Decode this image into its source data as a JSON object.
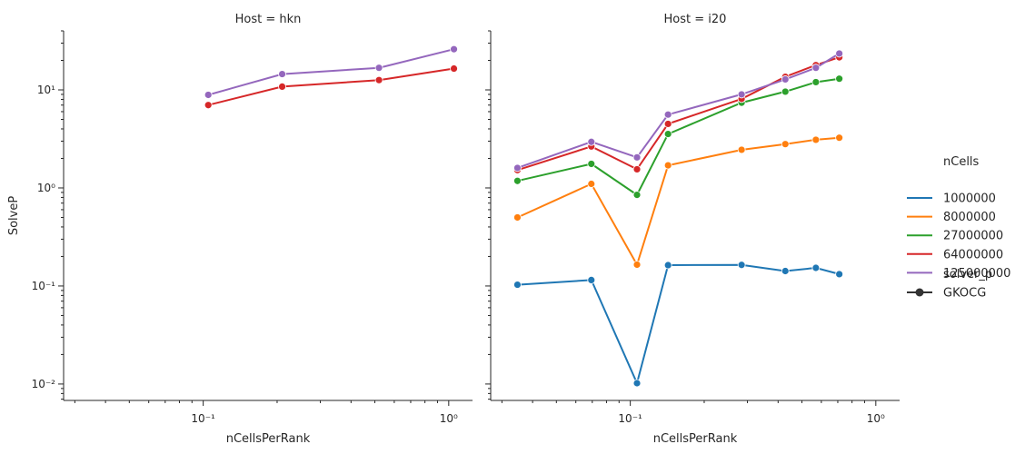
{
  "chart_data": {
    "type": "line",
    "panels": [
      {
        "title": "Host = hkn",
        "xlabel": "nCellsPerRank",
        "ylabel": "SolveP",
        "series": [
          {
            "name": "125000000",
            "x": [
              0.1048576,
              0.2097152,
              0.52,
              1.05
            ],
            "y": [
              8.9,
              14.5,
              16.8,
              26.0
            ]
          },
          {
            "name": "64000000",
            "x": [
              0.1048576,
              0.2097152,
              0.52,
              1.05
            ],
            "y": [
              7.0,
              10.8,
              12.6,
              16.5
            ]
          }
        ]
      },
      {
        "title": "Host = i20",
        "xlabel": "nCellsPerRank",
        "ylabel": "",
        "series": [
          {
            "name": "1000000",
            "x": [
              0.0347,
              0.0694,
              0.1065,
              0.1425,
              0.284,
              0.428,
              0.57,
              0.71
            ],
            "y": [
              0.103,
              0.115,
              0.0102,
              0.163,
              0.164,
              0.142,
              0.153,
              0.132
            ]
          },
          {
            "name": "8000000",
            "x": [
              0.0347,
              0.0694,
              0.1065,
              0.1425,
              0.284,
              0.428,
              0.57,
              0.71
            ],
            "y": [
              0.5,
              1.1,
              0.165,
              1.7,
              2.45,
              2.8,
              3.1,
              3.25
            ]
          },
          {
            "name": "27000000",
            "x": [
              0.0347,
              0.0694,
              0.1065,
              0.1425,
              0.284,
              0.428,
              0.57,
              0.71
            ],
            "y": [
              1.18,
              1.76,
              0.85,
              3.55,
              7.4,
              9.6,
              12.0,
              13.0
            ]
          },
          {
            "name": "64000000",
            "x": [
              0.0347,
              0.0694,
              0.1065,
              0.1425,
              0.284,
              0.428,
              0.57,
              0.71
            ],
            "y": [
              1.52,
              2.65,
              1.55,
              4.5,
              8.1,
              13.6,
              17.9,
              21.5
            ]
          },
          {
            "name": "125000000",
            "x": [
              0.0347,
              0.0694,
              0.1065,
              0.1425,
              0.284,
              0.428,
              0.57,
              0.71
            ],
            "y": [
              1.6,
              2.95,
              2.05,
              5.6,
              9.0,
              12.8,
              16.8,
              23.5
            ]
          }
        ]
      }
    ],
    "xscale": "log",
    "yscale": "log",
    "xlim": [
      0.027,
      1.25
    ],
    "ylim": [
      0.0068,
      40
    ],
    "x_ticks": [
      {
        "value": 0.1,
        "label": "10⁻¹"
      },
      {
        "value": 1,
        "label": "10⁰"
      }
    ],
    "y_ticks": [
      {
        "value": 0.01,
        "label": "10⁻²"
      },
      {
        "value": 0.1,
        "label": "10⁻¹"
      },
      {
        "value": 1,
        "label": "10⁰"
      },
      {
        "value": 10,
        "label": "10¹"
      }
    ],
    "legend": {
      "placement": "right",
      "hue_title": "nCells",
      "entries": [
        {
          "label": "1000000",
          "color": "#1f77b4"
        },
        {
          "label": "8000000",
          "color": "#ff7f0e"
        },
        {
          "label": "27000000",
          "color": "#2ca02c"
        },
        {
          "label": "64000000",
          "color": "#d62728"
        },
        {
          "label": "125000000",
          "color": "#9467bd"
        }
      ],
      "style_title": "solver_p",
      "style_entries": [
        {
          "label": "GKOCG",
          "color": "#333333"
        }
      ]
    },
    "grid": false
  }
}
